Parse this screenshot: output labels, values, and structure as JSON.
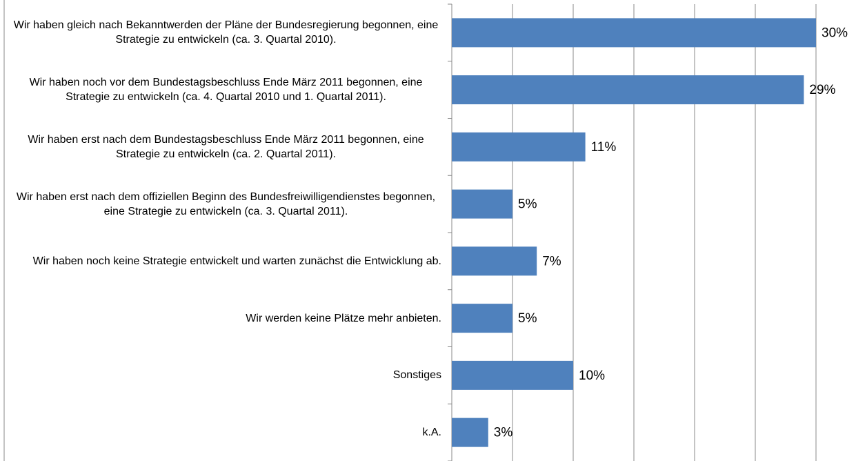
{
  "chart_data": {
    "type": "bar",
    "orientation": "horizontal",
    "categories": [
      "Wir haben gleich nach Bekanntwerden der Pläne der Bundesregierung begonnen, eine Strategie zu entwickeln (ca. 3. Quartal 2010).",
      "Wir haben noch vor dem Bundestagsbeschluss Ende März 2011 begonnen, eine Strategie zu entwickeln (ca. 4. Quartal 2010 und 1. Quartal 2011).",
      "Wir haben erst nach dem Bundestagsbeschluss Ende März 2011 begonnen, eine Strategie zu entwickeln (ca. 2. Quartal 2011).",
      "Wir haben erst nach dem offiziellen Beginn des Bundesfreiwilligendienstes begonnen, eine Strategie zu entwickeln (ca. 3. Quartal 2011).",
      "Wir haben noch keine Strategie entwickelt und warten zunächst die Entwicklung ab.",
      "Wir werden keine Plätze mehr anbieten.",
      "Sonstiges",
      "k.A."
    ],
    "values": [
      30,
      29,
      11,
      5,
      7,
      5,
      10,
      3
    ],
    "value_labels": [
      "30%",
      "29%",
      "11%",
      "5%",
      "7%",
      "5%",
      "10%",
      "3%"
    ],
    "color": "#4f81bd",
    "xlim": [
      0,
      33
    ],
    "xticks": [
      0,
      5,
      10,
      15,
      20,
      25,
      30
    ],
    "grid": true
  }
}
